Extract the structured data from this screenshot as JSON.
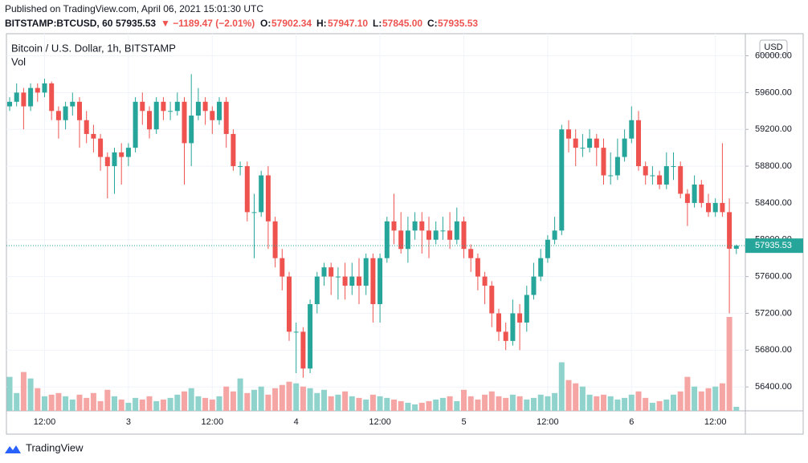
{
  "header": {
    "published": "Published on TradingView.com, April 06, 2021 15:01:30 UTC",
    "symbol": "BITSTAMP:BTCUSD, 60",
    "last": "57935.53",
    "change": "▼ −1189.47 (−2.01%)",
    "o_label": "O:",
    "o": "57902.34",
    "h_label": "H:",
    "h": "57947.10",
    "l_label": "L:",
    "l": "57845.00",
    "c_label": "C:",
    "c": "57935.53"
  },
  "footer": {
    "brand": "TradingView"
  },
  "chart_data": {
    "type": "candlestick",
    "title": "Bitcoin / U.S. Dollar, 1h, BITSTAMP",
    "volume_label": "Vol",
    "currency": "USD",
    "up_color": "#26a69a",
    "down_color": "#ef5350",
    "volume_up_color": "#8fd3cc",
    "volume_down_color": "#f5a5a3",
    "grid": true,
    "open": [
      59450,
      59500,
      59600,
      59450,
      59650,
      59600,
      59700,
      59400,
      59300,
      59450,
      59500,
      59300,
      59150,
      59100,
      58900,
      58800,
      58950,
      58900,
      59000,
      59500,
      59400,
      59200,
      59500,
      59400,
      59400,
      59500,
      59050,
      59350,
      59500,
      59400,
      59300,
      59500,
      59150,
      58800,
      58800,
      58300,
      58300,
      58700,
      58200,
      57800,
      57600,
      57000,
      57000,
      56600,
      57300,
      57600,
      57700,
      57600,
      57600,
      57500,
      57600,
      57500,
      57800,
      57300,
      57800,
      58200,
      58100,
      57900,
      58100,
      58200,
      58100,
      58000,
      58100,
      58100,
      58000,
      58200,
      57900,
      57800,
      57600,
      57500,
      57200,
      57000,
      56900,
      57200,
      57100,
      57400,
      57600,
      57800,
      58000,
      58100,
      59200,
      59100,
      59000,
      59000,
      59100,
      59000,
      58700,
      58700,
      58900,
      59100,
      59300,
      58800,
      58700,
      58700,
      58600,
      58800,
      58800,
      58500,
      58400,
      58600,
      58400,
      58300,
      58400,
      58300,
      57902.34
    ],
    "high": [
      59550,
      59700,
      59650,
      59700,
      59700,
      59750,
      59720,
      59450,
      59500,
      59600,
      59550,
      59400,
      59250,
      59150,
      58950,
      59000,
      59050,
      59050,
      59550,
      59600,
      59450,
      59550,
      59550,
      59500,
      59600,
      59550,
      59800,
      59650,
      59550,
      59450,
      59550,
      59550,
      59200,
      58850,
      58850,
      58500,
      58750,
      58800,
      58250,
      57900,
      57650,
      57100,
      57050,
      57350,
      57650,
      57750,
      57750,
      57700,
      57750,
      57750,
      57800,
      57850,
      57850,
      57850,
      58250,
      58500,
      58300,
      58250,
      58300,
      58300,
      58250,
      58200,
      58250,
      58300,
      58350,
      58250,
      57950,
      57850,
      57650,
      57550,
      57250,
      57100,
      57350,
      57300,
      57500,
      57750,
      57900,
      58050,
      58250,
      59250,
      59300,
      59200,
      59150,
      59200,
      59150,
      59100,
      58950,
      59100,
      59200,
      59450,
      59400,
      58850,
      58800,
      58750,
      58950,
      58950,
      58850,
      58550,
      58700,
      58650,
      58500,
      58450,
      59050,
      58450,
      57947.1
    ],
    "low": [
      59400,
      59450,
      59200,
      59400,
      59500,
      59550,
      59300,
      59100,
      59200,
      59350,
      59000,
      59050,
      58950,
      58750,
      58450,
      58500,
      58600,
      58800,
      58950,
      59250,
      59100,
      59150,
      59300,
      59300,
      59350,
      58600,
      58800,
      59300,
      59250,
      59150,
      59250,
      59000,
      58750,
      58700,
      58200,
      57800,
      58250,
      57900,
      57700,
      57450,
      56900,
      56550,
      56500,
      56550,
      57200,
      57500,
      57400,
      57350,
      57350,
      57400,
      57300,
      57400,
      57100,
      57100,
      57750,
      57950,
      57850,
      57750,
      58000,
      57850,
      57800,
      57950,
      58000,
      57900,
      57950,
      57800,
      57650,
      57450,
      57300,
      57050,
      56900,
      56800,
      56850,
      56800,
      57000,
      57350,
      57550,
      57750,
      57950,
      58050,
      58950,
      58800,
      58900,
      58950,
      58800,
      58600,
      58600,
      58650,
      58850,
      59050,
      58750,
      58600,
      58600,
      58550,
      58550,
      58650,
      58450,
      58150,
      58350,
      58350,
      58250,
      58250,
      58250,
      57200,
      57845
    ],
    "close": [
      59500,
      59600,
      59450,
      59650,
      59600,
      59700,
      59400,
      59300,
      59450,
      59500,
      59300,
      59150,
      59100,
      58900,
      58800,
      58950,
      58900,
      59000,
      59500,
      59400,
      59200,
      59500,
      59400,
      59400,
      59500,
      59050,
      59350,
      59500,
      59400,
      59300,
      59500,
      59150,
      58800,
      58800,
      58300,
      58300,
      58700,
      58200,
      57800,
      57600,
      57000,
      57000,
      56600,
      57300,
      57600,
      57700,
      57600,
      57600,
      57500,
      57600,
      57500,
      57800,
      57300,
      57800,
      58200,
      58100,
      57900,
      58100,
      58200,
      58100,
      58000,
      58100,
      58100,
      58000,
      58200,
      57900,
      57800,
      57600,
      57500,
      57200,
      57000,
      56900,
      57200,
      57100,
      57400,
      57600,
      57800,
      58000,
      58100,
      59200,
      59100,
      59000,
      59000,
      59100,
      59000,
      58700,
      58700,
      58900,
      59100,
      59300,
      58800,
      58700,
      58700,
      58600,
      58800,
      58800,
      58500,
      58400,
      58600,
      58400,
      58300,
      58400,
      58300,
      57902.34,
      57935.53
    ],
    "volume": [
      42,
      22,
      48,
      40,
      28,
      18,
      20,
      22,
      18,
      14,
      20,
      16,
      22,
      12,
      26,
      18,
      14,
      10,
      16,
      14,
      18,
      12,
      14,
      16,
      20,
      24,
      28,
      18,
      16,
      14,
      18,
      30,
      24,
      40,
      22,
      26,
      30,
      20,
      28,
      32,
      36,
      34,
      30,
      28,
      22,
      26,
      18,
      20,
      24,
      18,
      16,
      14,
      20,
      18,
      16,
      14,
      12,
      10,
      8,
      10,
      12,
      14,
      16,
      18,
      12,
      26,
      18,
      14,
      20,
      24,
      18,
      16,
      20,
      18,
      14,
      16,
      20,
      18,
      22,
      60,
      38,
      34,
      30,
      20,
      18,
      20,
      18,
      14,
      16,
      20,
      24,
      16,
      10,
      12,
      14,
      20,
      24,
      42,
      30,
      24,
      28,
      30,
      34,
      116,
      5
    ],
    "ylim": [
      56140,
      60240
    ],
    "yticks": [
      {
        "value": 56400,
        "label": "56400.00"
      },
      {
        "value": 56800,
        "label": "56800.00"
      },
      {
        "value": 57200,
        "label": "57200.00"
      },
      {
        "value": 57600,
        "label": "57600.00"
      },
      {
        "value": 58000,
        "label": "58000.00"
      },
      {
        "value": 58400,
        "label": "58400.00"
      },
      {
        "value": 58800,
        "label": "58800.00"
      },
      {
        "value": 59200,
        "label": "59200.00"
      },
      {
        "value": 59600,
        "label": "59600.00"
      },
      {
        "value": 60000,
        "label": "60000.00"
      }
    ],
    "xticks": [
      {
        "value": 5,
        "label": "12:00"
      },
      {
        "value": 17,
        "label": "3"
      },
      {
        "value": 29,
        "label": "12:00"
      },
      {
        "value": 41,
        "label": "4"
      },
      {
        "value": 53,
        "label": "12:00"
      },
      {
        "value": 65,
        "label": "5"
      },
      {
        "value": 77,
        "label": "12:00"
      },
      {
        "value": 89,
        "label": "6"
      },
      {
        "value": 101,
        "label": "12:00"
      }
    ]
  }
}
